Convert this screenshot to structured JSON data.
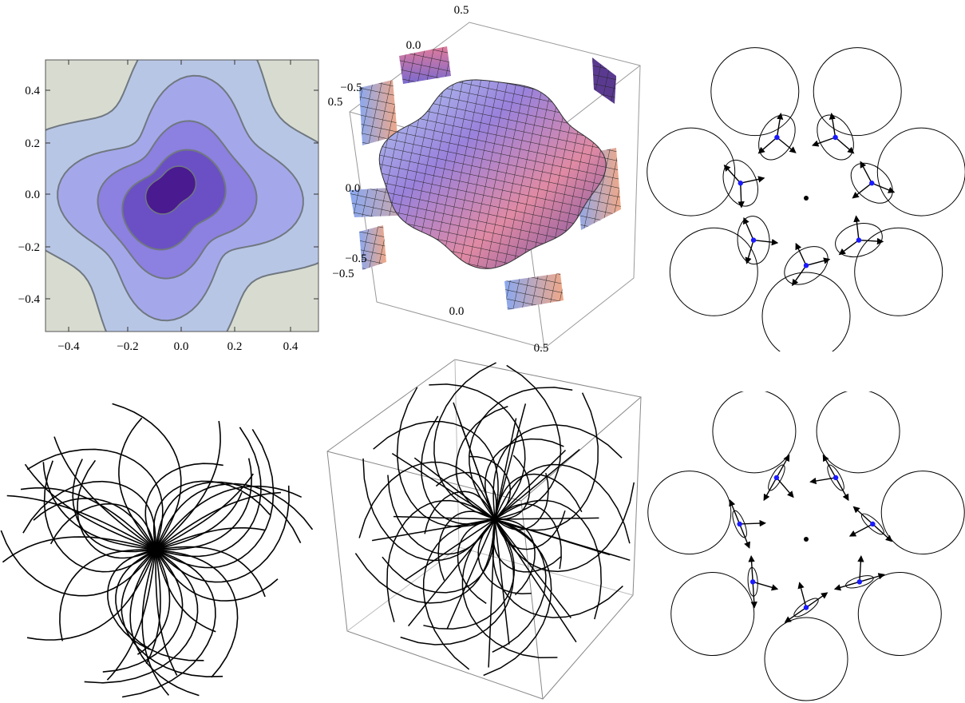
{
  "panels": {
    "contour": {
      "x_ticks": [
        "−0.4",
        "−0.2",
        "0.0",
        "0.2",
        "0.4"
      ],
      "y_ticks": [
        "0.4",
        "0.2",
        "0.0",
        "−0.2",
        "−0.4"
      ],
      "colors": [
        "#d8dcd0",
        "#b8c6e6",
        "#a4a8ea",
        "#8c80e0",
        "#6a50c4",
        "#4a1a90"
      ]
    },
    "surface3d": {
      "tick_labels": [
        "0.5",
        "0.0",
        "−0.5",
        "0.5",
        "0.0",
        "−0.5",
        "−0.5",
        "0.0",
        "0.5"
      ],
      "colors": [
        "#e88a9a",
        "#8a7ad8",
        "#a8c4f0",
        "#f0b088",
        "#6a4aa0"
      ]
    },
    "ring_top": {
      "marker_color": "#1a1aff",
      "ellipse_size": "large"
    },
    "streamlines2d": {
      "line_color": "#000000"
    },
    "streamlines3d": {
      "line_color": "#000000",
      "box_color": "#888888"
    },
    "ring_bottom": {
      "marker_color": "#1a1aff",
      "ellipse_size": "small"
    }
  }
}
